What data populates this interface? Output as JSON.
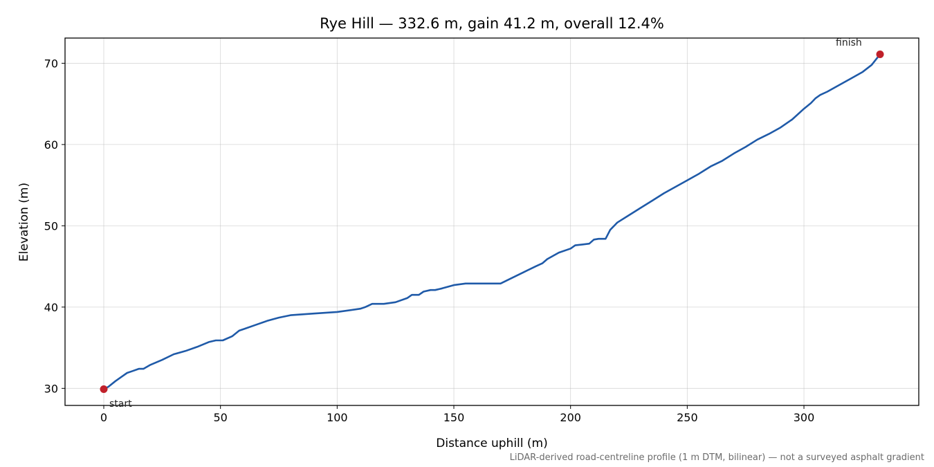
{
  "chart_data": {
    "type": "line",
    "title": "Rye Hill — 332.6 m, gain 41.2 m, overall 12.4%",
    "xlabel": "Distance uphill (m)",
    "ylabel": "Elevation (m)",
    "xlim": [
      -16.6,
      349.2
    ],
    "ylim": [
      27.9,
      73.1
    ],
    "xticks": [
      0,
      50,
      100,
      150,
      200,
      250,
      300
    ],
    "yticks": [
      30,
      40,
      50,
      60,
      70
    ],
    "grid": true,
    "line_color": "#1f5aa8",
    "marker_color": "#c0202a",
    "annotations": {
      "start": "start",
      "finish": "finish"
    },
    "footnote": "LiDAR-derived road-centreline profile (1 m DTM, bilinear) — not a surveyed asphalt gradient",
    "series": [
      {
        "x": [
          0,
          2,
          5,
          8,
          10,
          12,
          15,
          17,
          20,
          25,
          30,
          35,
          40,
          45,
          48,
          51,
          55,
          58,
          60,
          65,
          70,
          75,
          80,
          90,
          100,
          110,
          112,
          115,
          120,
          125,
          130,
          132,
          135,
          137,
          140,
          142,
          145,
          150,
          155,
          158,
          160,
          165,
          170,
          175,
          180,
          185,
          188,
          190,
          195,
          200,
          202,
          205,
          208,
          210,
          212,
          215,
          217,
          220,
          225,
          230,
          235,
          240,
          245,
          250,
          255,
          260,
          265,
          270,
          275,
          280,
          285,
          290,
          295,
          300,
          303,
          305,
          307,
          310,
          315,
          320,
          325,
          329,
          332.6
        ],
        "y": [
          29.9,
          30.2,
          30.9,
          31.5,
          31.9,
          32.1,
          32.4,
          32.4,
          32.9,
          33.5,
          34.2,
          34.6,
          35.1,
          35.7,
          35.9,
          35.9,
          36.4,
          37.1,
          37.3,
          37.8,
          38.3,
          38.7,
          39.0,
          39.2,
          39.4,
          39.8,
          40.0,
          40.4,
          40.4,
          40.6,
          41.1,
          41.5,
          41.5,
          41.9,
          42.1,
          42.1,
          42.3,
          42.7,
          42.9,
          42.9,
          42.9,
          42.9,
          42.9,
          43.6,
          44.3,
          45.0,
          45.4,
          45.9,
          46.7,
          47.2,
          47.6,
          47.7,
          47.8,
          48.3,
          48.4,
          48.4,
          49.5,
          50.4,
          51.3,
          52.2,
          53.1,
          54.0,
          54.8,
          55.6,
          56.4,
          57.3,
          58.0,
          58.9,
          59.7,
          60.6,
          61.3,
          62.1,
          63.1,
          64.4,
          65.1,
          65.7,
          66.1,
          66.5,
          67.3,
          68.1,
          68.9,
          69.8,
          71.1
        ]
      }
    ]
  }
}
